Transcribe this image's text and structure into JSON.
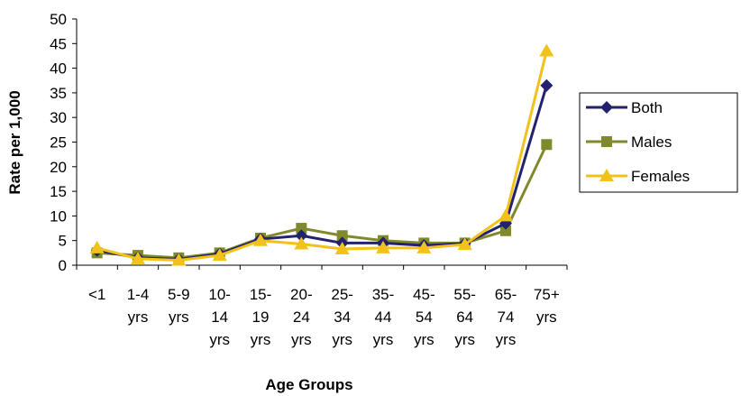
{
  "chart_data": {
    "type": "line",
    "title": "",
    "xlabel": "Age Groups",
    "ylabel": "Rate per 1,000",
    "ylim": [
      0,
      50
    ],
    "yticks": [
      0,
      5,
      10,
      15,
      20,
      25,
      30,
      35,
      40,
      45,
      50
    ],
    "grid": false,
    "legend_position": "right",
    "categories": [
      [
        "<1"
      ],
      [
        "1-4",
        "yrs"
      ],
      [
        "5-9",
        "yrs"
      ],
      [
        "10-",
        "14",
        "yrs"
      ],
      [
        "15-",
        "19",
        "yrs"
      ],
      [
        "20-",
        "24",
        "yrs"
      ],
      [
        "25-",
        "34",
        "yrs"
      ],
      [
        "35-",
        "44",
        "yrs"
      ],
      [
        "45-",
        "54",
        "yrs"
      ],
      [
        "55-",
        "64",
        "yrs"
      ],
      [
        "65-",
        "74",
        "yrs"
      ],
      [
        "75+",
        "yrs"
      ]
    ],
    "series": [
      {
        "name": "Males",
        "color": "#808A2C",
        "marker": "square",
        "values": [
          2.5,
          2.0,
          1.5,
          2.5,
          5.5,
          7.5,
          6.0,
          5.0,
          4.5,
          4.5,
          7.0,
          24.5
        ]
      },
      {
        "name": "Both",
        "color": "#22226E",
        "marker": "diamond",
        "values": [
          3.0,
          1.5,
          1.2,
          2.3,
          5.3,
          6.0,
          4.5,
          4.5,
          4.0,
          4.4,
          8.5,
          36.5
        ]
      },
      {
        "name": "Females",
        "color": "#F2C21A",
        "marker": "triangle",
        "values": [
          3.5,
          1.3,
          1.0,
          2.0,
          5.0,
          4.3,
          3.3,
          3.5,
          3.5,
          4.2,
          10.0,
          43.5
        ]
      }
    ],
    "legend": [
      "Both",
      "Males",
      "Females"
    ]
  }
}
